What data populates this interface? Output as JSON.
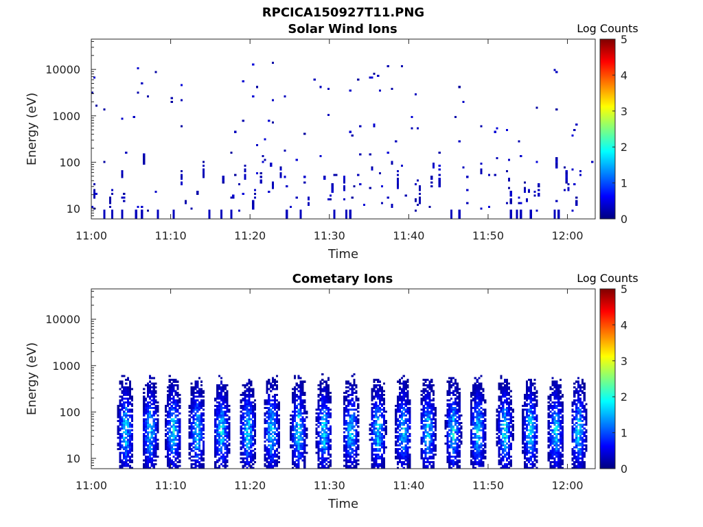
{
  "figure_title": "RPCICA150927T11.PNG",
  "colors": {
    "colormap": [
      "#00007f",
      "#0000ff",
      "#007fff",
      "#00ffff",
      "#7fff7f",
      "#ffff00",
      "#ff7f00",
      "#ff0000",
      "#7f0000"
    ],
    "axis": "#262626",
    "background": "#ffffff"
  },
  "chart_data": [
    {
      "type": "heatmap",
      "title": "Solar Wind Ions",
      "xlabel": "Time",
      "ylabel": "Energy (eV)",
      "x_ticks": [
        "11:00",
        "11:10",
        "11:20",
        "11:30",
        "11:40",
        "11:50",
        "12:00"
      ],
      "x_tick_minutes": [
        0,
        10,
        20,
        30,
        40,
        50,
        60
      ],
      "xlim_minutes": [
        0,
        63.5
      ],
      "y_scale": "log",
      "ylim": [
        6,
        45000
      ],
      "y_ticks": [
        "10",
        "100",
        "1000",
        "10000"
      ],
      "y_tick_values": [
        10,
        100,
        1000,
        10000
      ],
      "colorbar": {
        "label": "Log Counts",
        "range": [
          0,
          5
        ],
        "ticks": [
          "0",
          "1",
          "2",
          "3",
          "4",
          "5"
        ]
      },
      "description_of_values": "sparse isolated counts of log value ~0.1-0.5 (dark blue) scattered over 10-12000 eV, densest 20-300 eV",
      "generator": {
        "seed": 11,
        "mode": "sparse"
      }
    },
    {
      "type": "heatmap",
      "title": "Cometary Ions",
      "xlabel": "Time",
      "ylabel": "Energy (eV)",
      "x_ticks": [
        "11:00",
        "11:10",
        "11:20",
        "11:30",
        "11:40",
        "11:50",
        "12:00"
      ],
      "x_tick_minutes": [
        0,
        10,
        20,
        30,
        40,
        50,
        60
      ],
      "xlim_minutes": [
        0,
        63.5
      ],
      "y_scale": "log",
      "ylim": [
        6,
        45000
      ],
      "y_ticks": [
        "10",
        "100",
        "1000",
        "10000"
      ],
      "y_tick_values": [
        10,
        100,
        1000,
        10000
      ],
      "colorbar": {
        "label": "Log Counts",
        "range": [
          0,
          5
        ],
        "ticks": [
          "0",
          "1",
          "2",
          "3",
          "4",
          "5"
        ]
      },
      "bursts_minutes": [
        4.2,
        7.3,
        10.2,
        13.2,
        16.3,
        19.6,
        22.6,
        26.0,
        29.2,
        32.6,
        36.0,
        39.2,
        42.3,
        45.5,
        48.6,
        52.0,
        55.2,
        58.4,
        61.3
      ],
      "burst_energy_range_eV": [
        6,
        500
      ],
      "peak_energy_eV": 40,
      "peak_log_counts": 1.7,
      "generator": {
        "seed": 27,
        "mode": "bursts"
      }
    }
  ]
}
